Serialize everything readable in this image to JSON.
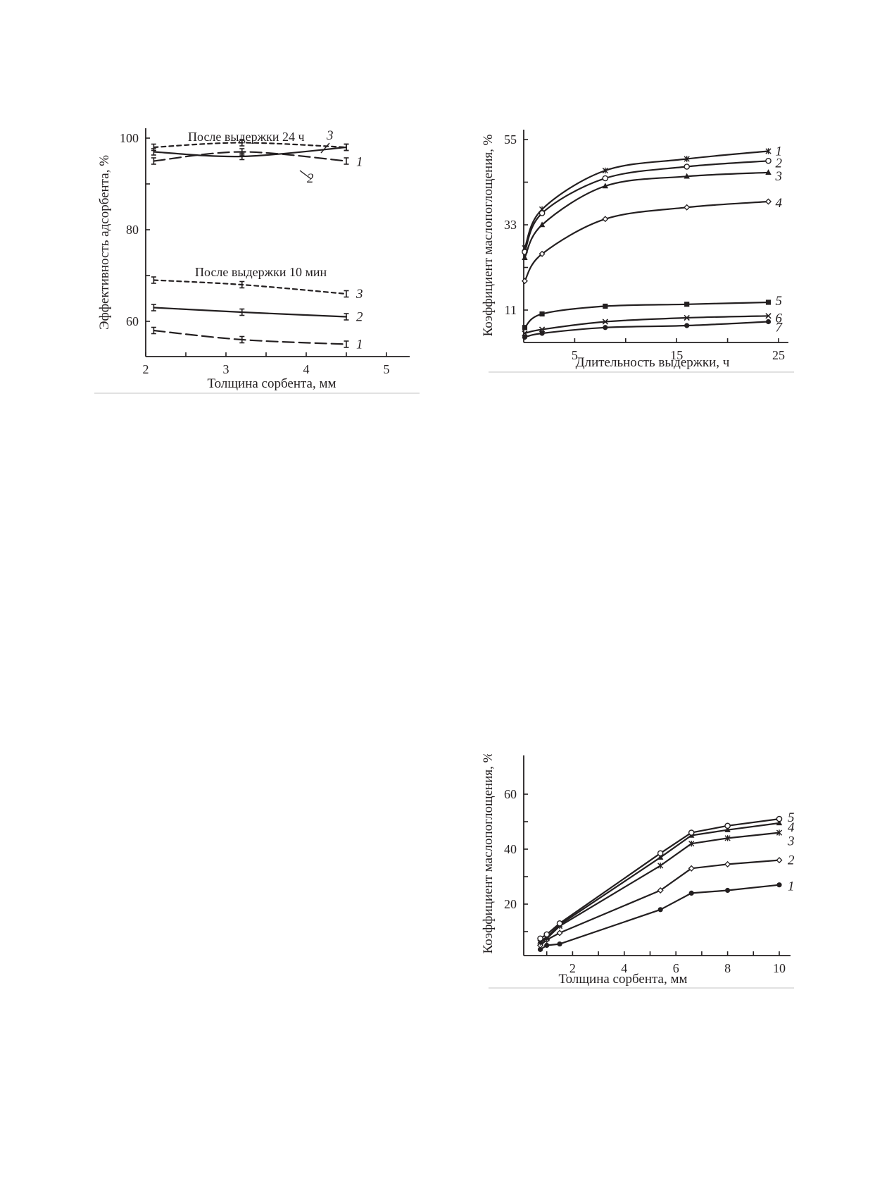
{
  "chart_data": [
    {
      "type": "line",
      "xlabel": "Толщина сорбента, мм",
      "ylabel": "Эффективность адсорбента, %",
      "xlim": [
        2,
        5.2
      ],
      "ylim": [
        50,
        105
      ],
      "xticks": [
        2,
        3,
        4,
        5
      ],
      "yticks": [
        60,
        80,
        100
      ],
      "annotations": [
        "После выдержки 24 ч",
        "После выдержки 10 мин"
      ],
      "error_bars": true,
      "series": [
        {
          "name": "1",
          "group": "После выдержки 24 ч",
          "style": "long-dash",
          "x": [
            2.1,
            3.2,
            4.5
          ],
          "y": [
            95,
            97,
            95
          ]
        },
        {
          "name": "2",
          "group": "После выдержки 24 ч",
          "style": "solid",
          "x": [
            2.1,
            3.2,
            4.5
          ],
          "y": [
            97,
            96,
            98
          ]
        },
        {
          "name": "3",
          "group": "После выдержки 24 ч",
          "style": "short-dash",
          "x": [
            2.1,
            3.2,
            4.5
          ],
          "y": [
            98,
            99,
            98
          ]
        },
        {
          "name": "1",
          "group": "После выдержки 10 мин",
          "style": "long-dash",
          "x": [
            2.1,
            3.2,
            4.5
          ],
          "y": [
            58,
            56,
            55
          ]
        },
        {
          "name": "2",
          "group": "После выдержки 10 мин",
          "style": "solid",
          "x": [
            2.1,
            3.2,
            4.5
          ],
          "y": [
            63,
            62,
            61
          ]
        },
        {
          "name": "3",
          "group": "После выдержки 10 мин",
          "style": "short-dash",
          "x": [
            2.1,
            3.2,
            4.5
          ],
          "y": [
            69,
            68,
            66
          ]
        }
      ]
    },
    {
      "type": "line",
      "xlabel": "Длительность выдержки, ч",
      "ylabel": "Коэффициент маслопоглощения, %",
      "xlim": [
        0,
        26
      ],
      "ylim": [
        0,
        61
      ],
      "xticks": [
        5,
        15,
        25
      ],
      "yticks": [
        11,
        33,
        55
      ],
      "series": [
        {
          "name": "1",
          "marker": "star",
          "x": [
            0.1,
            1.8,
            8,
            16,
            24
          ],
          "y": [
            27,
            37,
            47,
            50,
            52
          ]
        },
        {
          "name": "2",
          "marker": "circle-open",
          "x": [
            0.1,
            1.8,
            8,
            16,
            24
          ],
          "y": [
            26,
            36,
            45,
            48,
            49.5
          ]
        },
        {
          "name": "3",
          "marker": "triangle",
          "x": [
            0.1,
            1.8,
            8,
            16,
            24
          ],
          "y": [
            24.5,
            33,
            43,
            45.5,
            46.5
          ]
        },
        {
          "name": "4",
          "marker": "diamond-open",
          "x": [
            0.1,
            1.8,
            8,
            16,
            24
          ],
          "y": [
            18.5,
            25.5,
            34.5,
            37.5,
            39
          ]
        },
        {
          "name": "5",
          "marker": "square",
          "x": [
            0.1,
            1.8,
            8,
            16,
            24
          ],
          "y": [
            6.5,
            10,
            12,
            12.5,
            13
          ]
        },
        {
          "name": "6",
          "marker": "x",
          "x": [
            0.1,
            1.8,
            8,
            16,
            24
          ],
          "y": [
            5,
            6,
            8,
            9,
            9.5
          ]
        },
        {
          "name": "7",
          "marker": "circle-filled",
          "x": [
            0.1,
            1.8,
            8,
            16,
            24
          ],
          "y": [
            4,
            5,
            6.5,
            7,
            8
          ]
        }
      ]
    },
    {
      "type": "line",
      "xlabel": "Толщина сорбента, мм",
      "ylabel": "Коэффициент маслопоглощения, %",
      "xlim": [
        0,
        10.5
      ],
      "ylim": [
        0,
        70
      ],
      "xticks": [
        2,
        4,
        6,
        8,
        10
      ],
      "yticks": [
        20,
        40,
        60
      ],
      "series": [
        {
          "name": "1",
          "marker": "circle-filled",
          "x": [
            0.75,
            1,
            1.5,
            5.4,
            6.6,
            8,
            10
          ],
          "y": [
            3.5,
            5,
            5.5,
            18,
            24,
            25,
            27
          ]
        },
        {
          "name": "2",
          "marker": "diamond-open",
          "x": [
            0.75,
            1,
            1.5,
            5.4,
            6.6,
            8,
            10
          ],
          "y": [
            5,
            7,
            9.5,
            25,
            33,
            34.5,
            36
          ]
        },
        {
          "name": "3",
          "marker": "star",
          "x": [
            0.75,
            1,
            1.5,
            5.4,
            6.6,
            8,
            10
          ],
          "y": [
            6,
            7.5,
            12,
            34,
            42,
            44,
            46
          ]
        },
        {
          "name": "4",
          "marker": "triangle",
          "x": [
            0.75,
            1,
            1.5,
            5.4,
            6.6,
            8,
            10
          ],
          "y": [
            6.5,
            8,
            12.5,
            37,
            45,
            47,
            49.5
          ]
        },
        {
          "name": "5",
          "marker": "circle-open",
          "x": [
            0.75,
            1,
            1.5,
            5.4,
            6.6,
            8,
            10
          ],
          "y": [
            7.5,
            9,
            13,
            38.5,
            46,
            48.5,
            51
          ]
        }
      ]
    }
  ]
}
